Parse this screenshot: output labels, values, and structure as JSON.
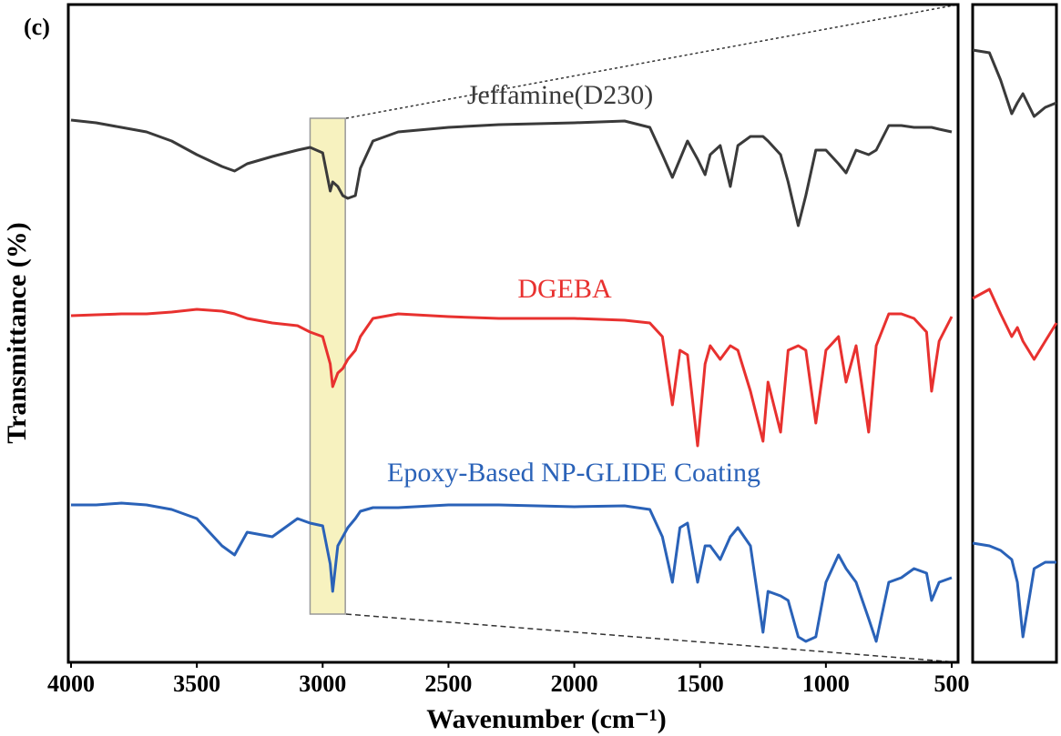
{
  "chart_data": [
    {
      "type": "line",
      "panel_label": "(c)",
      "xlabel": "Wavenumber (cm⁻¹)",
      "ylabel": "Transmittance (%)",
      "xlim": [
        4000,
        500
      ],
      "xticks": [
        4000,
        3500,
        3000,
        2500,
        2000,
        1500,
        1000,
        500
      ],
      "ylim": [
        0,
        723
      ],
      "highlight": [
        3050,
        2910
      ],
      "x": [
        4000,
        3900,
        3800,
        3700,
        3600,
        3500,
        3400,
        3350,
        3300,
        3200,
        3100,
        3050,
        3000,
        2970,
        2960,
        2940,
        2920,
        2900,
        2870,
        2850,
        2800,
        2700,
        2500,
        2300,
        2000,
        1800,
        1700,
        1650,
        1610,
        1580,
        1550,
        1510,
        1480,
        1460,
        1420,
        1380,
        1350,
        1300,
        1250,
        1230,
        1180,
        1150,
        1110,
        1080,
        1040,
        1000,
        950,
        920,
        880,
        830,
        800,
        750,
        700,
        650,
        600,
        580,
        550,
        500
      ],
      "series": [
        {
          "name": "Jeffamine(D230)",
          "color": "#3a3a3a",
          "values": [
            596,
            593,
            588,
            583,
            573,
            558,
            545,
            540,
            548,
            556,
            563,
            566,
            560,
            518,
            528,
            523,
            513,
            510,
            513,
            543,
            573,
            583,
            588,
            591,
            593,
            595,
            588,
            558,
            533,
            553,
            573,
            553,
            536,
            558,
            568,
            523,
            568,
            578,
            578,
            573,
            558,
            528,
            480,
            513,
            563,
            563,
            548,
            538,
            563,
            558,
            563,
            590,
            590,
            588,
            588,
            588,
            586,
            583
          ]
        },
        {
          "name": "DGEBA",
          "color": "#e8312f",
          "values": [
            381,
            382,
            383,
            383,
            385,
            388,
            386,
            383,
            378,
            373,
            370,
            363,
            358,
            328,
            303,
            318,
            323,
            333,
            343,
            358,
            378,
            383,
            380,
            378,
            378,
            376,
            373,
            358,
            283,
            343,
            338,
            238,
            328,
            348,
            333,
            348,
            343,
            298,
            243,
            308,
            253,
            343,
            348,
            343,
            263,
            343,
            358,
            308,
            348,
            253,
            348,
            383,
            383,
            378,
            363,
            298,
            353,
            380
          ]
        },
        {
          "name": "Epoxy-Based NP-GLIDE Coating",
          "color": "#2a62b8",
          "values": [
            173,
            173,
            175,
            173,
            168,
            158,
            128,
            118,
            143,
            138,
            158,
            153,
            150,
            108,
            78,
            128,
            138,
            148,
            158,
            166,
            170,
            170,
            173,
            173,
            171,
            172,
            168,
            138,
            88,
            148,
            153,
            88,
            128,
            128,
            113,
            138,
            148,
            128,
            33,
            78,
            73,
            68,
            28,
            23,
            28,
            88,
            118,
            103,
            88,
            48,
            23,
            88,
            93,
            103,
            98,
            68,
            88,
            93
          ]
        }
      ]
    },
    {
      "type": "line",
      "xlim": [
        3050,
        2900
      ],
      "ylim": [
        0,
        723
      ],
      "x": [
        3050,
        3020,
        3000,
        2980,
        2970,
        2960,
        2940,
        2920,
        2900
      ],
      "series": [
        {
          "color": "#3a3a3a",
          "values": [
            673,
            670,
            640,
            603,
            615,
            625,
            600,
            610,
            615
          ]
        },
        {
          "color": "#e8312f",
          "values": [
            400,
            410,
            383,
            358,
            368,
            353,
            333,
            353,
            373
          ]
        },
        {
          "color": "#2a62b8",
          "values": [
            131,
            128,
            123,
            113,
            88,
            28,
            103,
            110,
            110
          ]
        }
      ]
    }
  ]
}
